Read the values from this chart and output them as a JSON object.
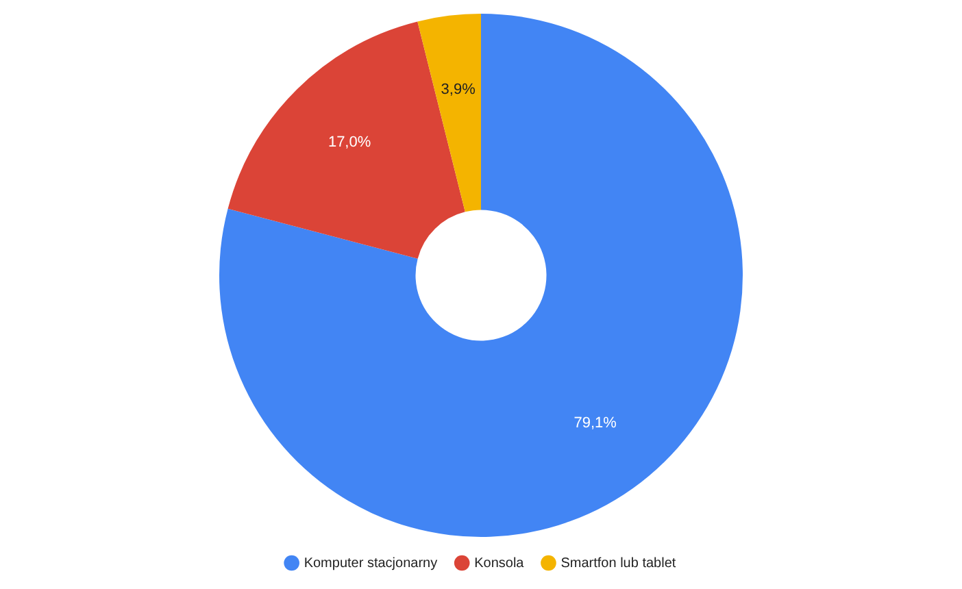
{
  "chart_data": {
    "type": "donut",
    "categories": [
      "Komputer stacjonarny",
      "Konsola",
      "Smartfon lub tablet"
    ],
    "values": [
      79.1,
      17.0,
      3.9
    ],
    "colors": [
      "#4285f4",
      "#db4437",
      "#f4b400"
    ],
    "value_labels": [
      "79,1%",
      "17,0%",
      "3,9%"
    ],
    "legend": "bottom"
  }
}
